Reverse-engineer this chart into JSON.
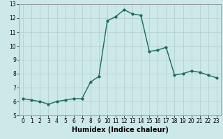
{
  "x": [
    0,
    1,
    2,
    3,
    4,
    5,
    6,
    7,
    8,
    9,
    10,
    11,
    12,
    13,
    14,
    15,
    16,
    17,
    18,
    19,
    20,
    21,
    22,
    23
  ],
  "y": [
    6.2,
    6.1,
    6.0,
    5.8,
    6.0,
    6.1,
    6.2,
    6.2,
    7.4,
    7.8,
    11.8,
    12.1,
    12.6,
    12.3,
    12.2,
    9.6,
    9.7,
    9.9,
    7.9,
    8.0,
    8.2,
    8.1,
    7.9,
    7.7
  ],
  "line_color": "#1a6b5a",
  "marker": "o",
  "marker_size": 2.0,
  "line_width": 1.0,
  "xlabel": "Humidex (Indice chaleur)",
  "xlim": [
    -0.5,
    23.5
  ],
  "ylim": [
    5,
    13
  ],
  "yticks": [
    5,
    6,
    7,
    8,
    9,
    10,
    11,
    12,
    13
  ],
  "xticks": [
    0,
    1,
    2,
    3,
    4,
    5,
    6,
    7,
    8,
    9,
    10,
    11,
    12,
    13,
    14,
    15,
    16,
    17,
    18,
    19,
    20,
    21,
    22,
    23
  ],
  "bg_color": "#cce8e8",
  "grid_color": "#b0cccc",
  "tick_fontsize": 5.5,
  "xlabel_fontsize": 7.0
}
